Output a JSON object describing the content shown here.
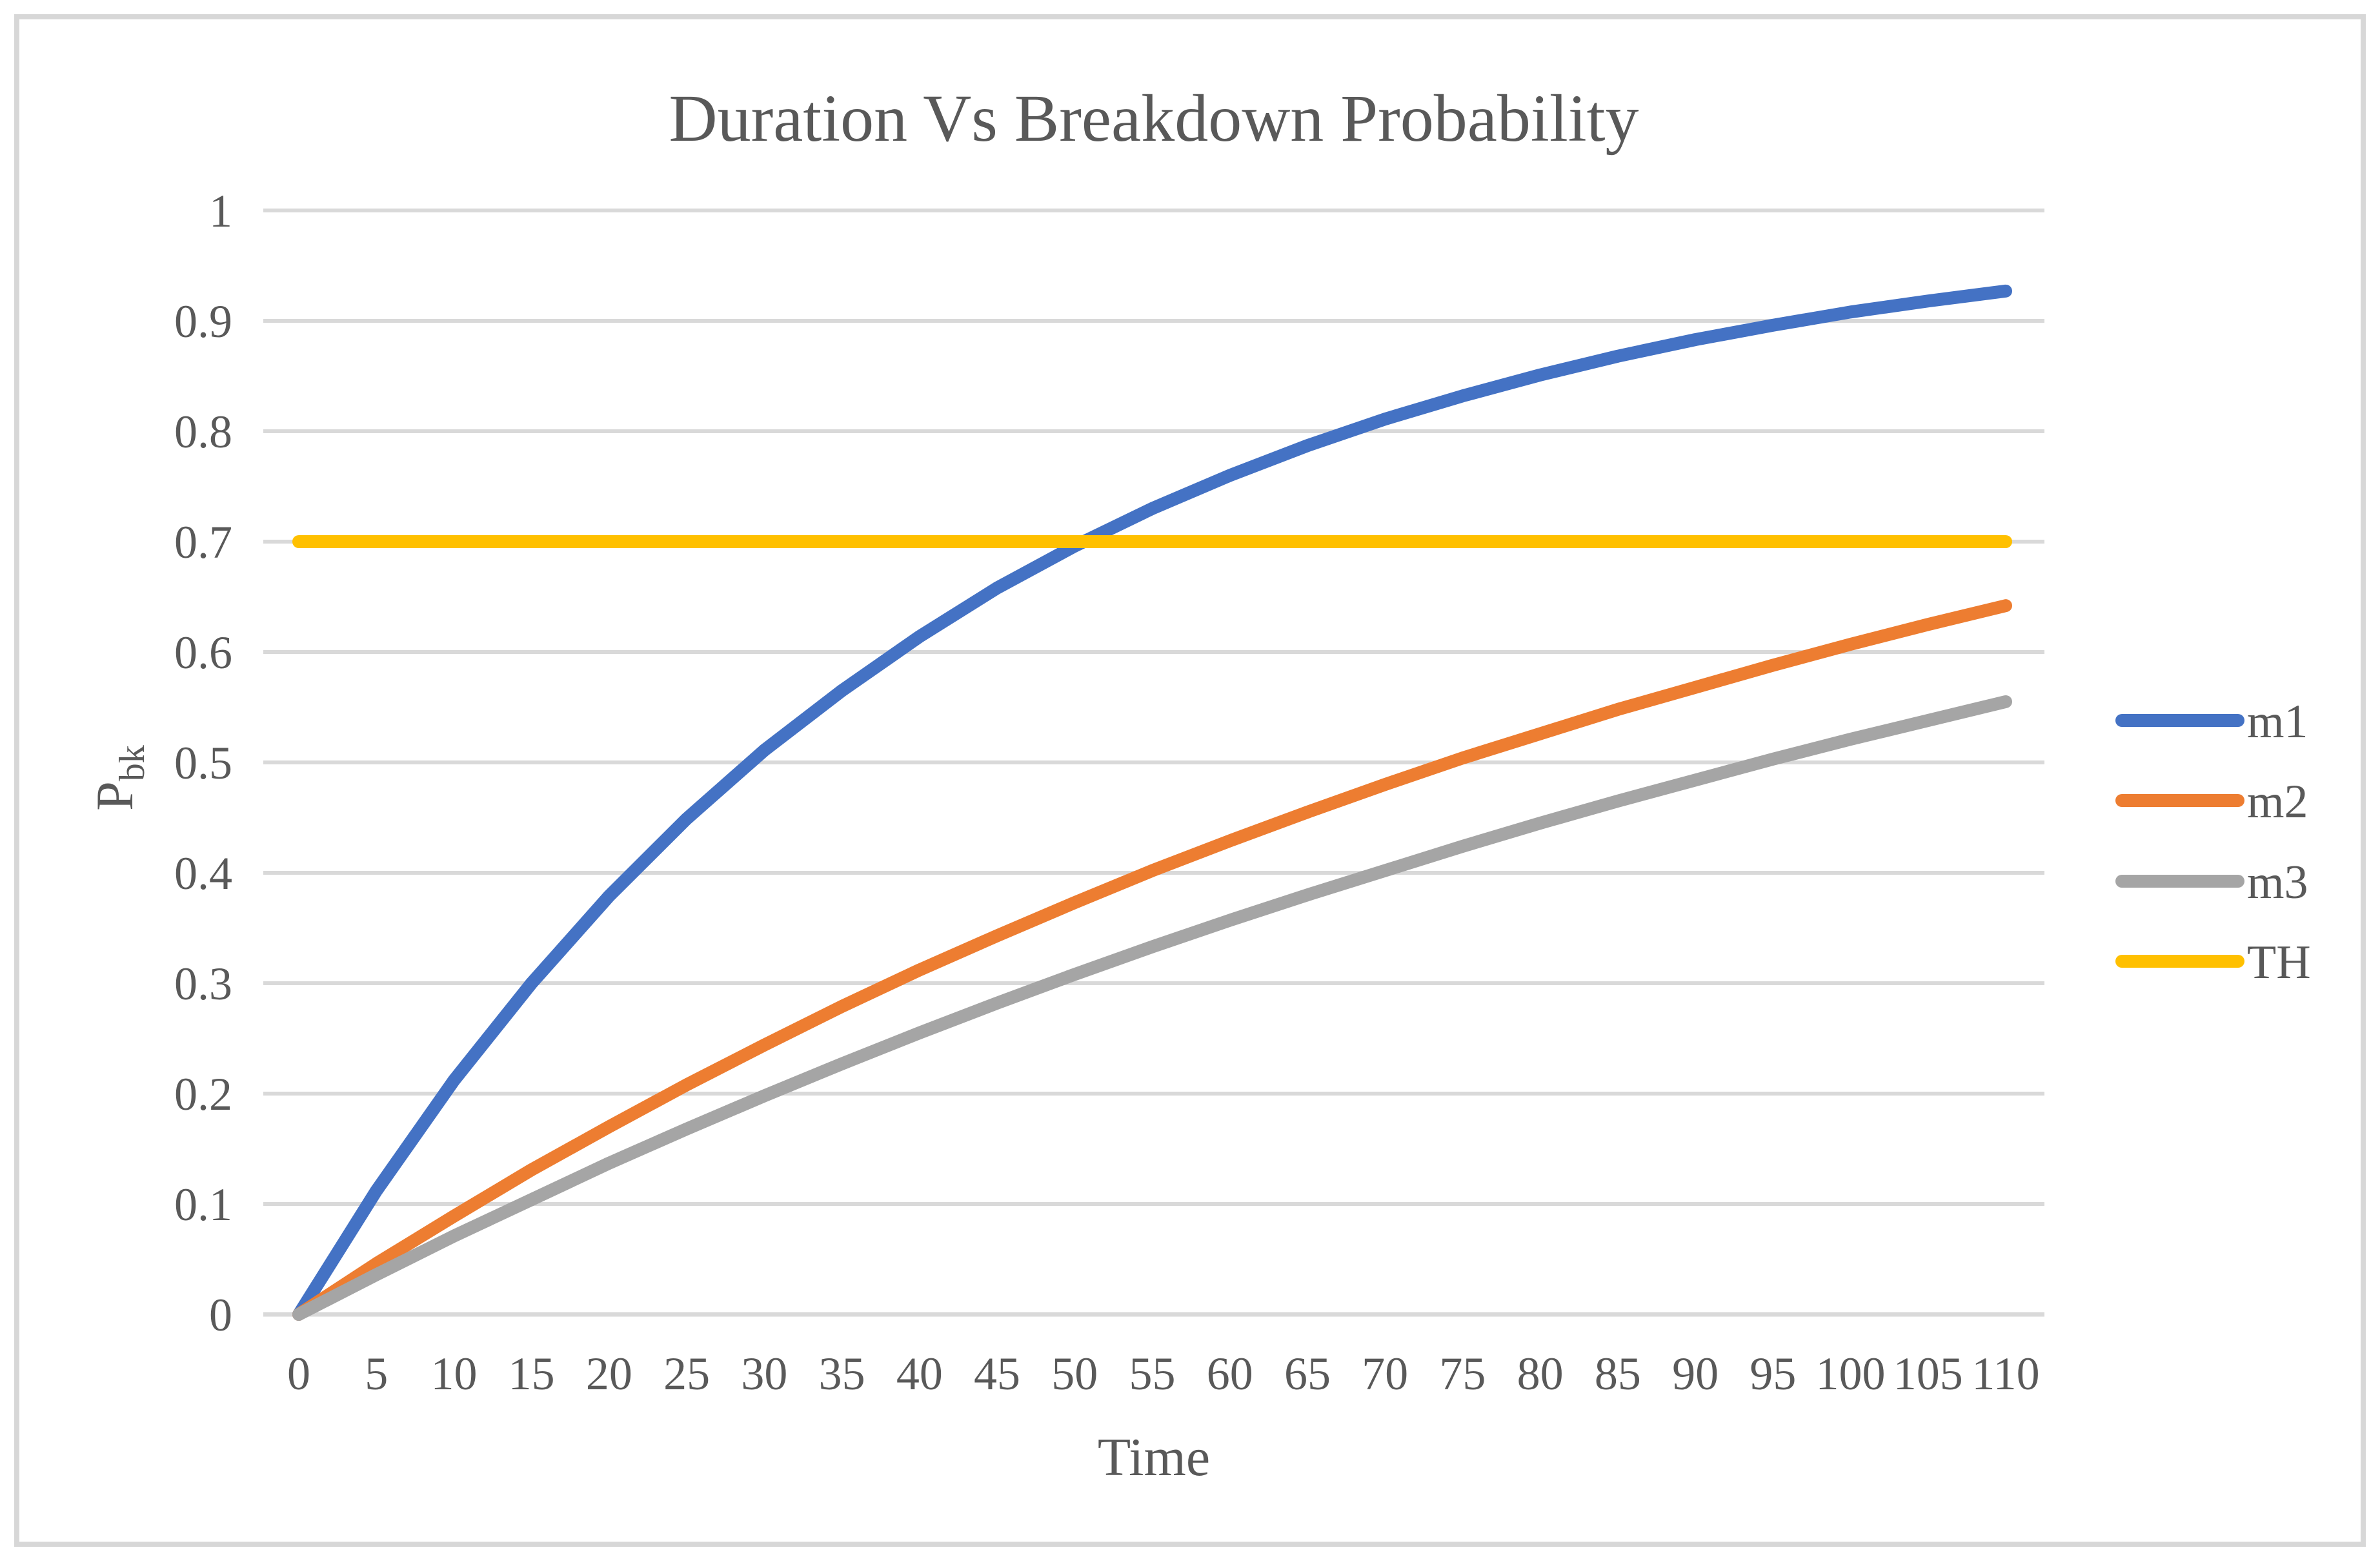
{
  "figure": {
    "background": "#ffffff",
    "border_color": "#d7d7d7"
  },
  "chart_data": {
    "type": "line",
    "title": "Duration Vs Breakdown Probability",
    "xlabel": "Time",
    "ylabel": "P",
    "ylabel_subscript": "bk",
    "x": [
      0,
      5,
      10,
      15,
      20,
      25,
      30,
      35,
      40,
      45,
      50,
      55,
      60,
      65,
      70,
      75,
      80,
      85,
      90,
      95,
      100,
      105,
      110
    ],
    "xtick_labels": [
      "0",
      "5",
      "10",
      "15",
      "20",
      "25",
      "30",
      "35",
      "40",
      "45",
      "50",
      "55",
      "60",
      "65",
      "70",
      "75",
      "80",
      "85",
      "90",
      "95",
      "100",
      "105",
      "110"
    ],
    "ylim": [
      0,
      1
    ],
    "ytick_step": 0.1,
    "ytick_labels": [
      "0",
      "0.1",
      "0.2",
      "0.3",
      "0.4",
      "0.5",
      "0.6",
      "0.7",
      "0.8",
      "0.9",
      "1"
    ],
    "grid": "horizontal-only",
    "legend_position": "right",
    "colors": {
      "gridline": "#d9d9d9",
      "axis_line": "#d9d9d9",
      "text": "#595959"
    },
    "series": [
      {
        "name": "m1",
        "color": "#4472C4",
        "values": [
          0,
          0.112,
          0.212,
          0.3,
          0.379,
          0.449,
          0.511,
          0.565,
          0.614,
          0.658,
          0.696,
          0.73,
          0.76,
          0.787,
          0.811,
          0.832,
          0.851,
          0.868,
          0.883,
          0.896,
          0.908,
          0.918,
          0.927
        ]
      },
      {
        "name": "m2",
        "color": "#ED7D31",
        "values": [
          0,
          0.046,
          0.089,
          0.131,
          0.17,
          0.208,
          0.244,
          0.279,
          0.312,
          0.343,
          0.373,
          0.402,
          0.429,
          0.455,
          0.48,
          0.504,
          0.526,
          0.548,
          0.568,
          0.588,
          0.607,
          0.625,
          0.642
        ]
      },
      {
        "name": "m3",
        "color": "#A5A5A5",
        "values": [
          0,
          0.036,
          0.071,
          0.104,
          0.137,
          0.168,
          0.198,
          0.227,
          0.255,
          0.282,
          0.308,
          0.333,
          0.357,
          0.38,
          0.402,
          0.424,
          0.445,
          0.465,
          0.484,
          0.503,
          0.521,
          0.538,
          0.555
        ]
      },
      {
        "name": "TH",
        "color": "#FFC000",
        "values": [
          0.7,
          0.7,
          0.7,
          0.7,
          0.7,
          0.7,
          0.7,
          0.7,
          0.7,
          0.7,
          0.7,
          0.7,
          0.7,
          0.7,
          0.7,
          0.7,
          0.7,
          0.7,
          0.7,
          0.7,
          0.7,
          0.7,
          0.7
        ]
      }
    ]
  }
}
